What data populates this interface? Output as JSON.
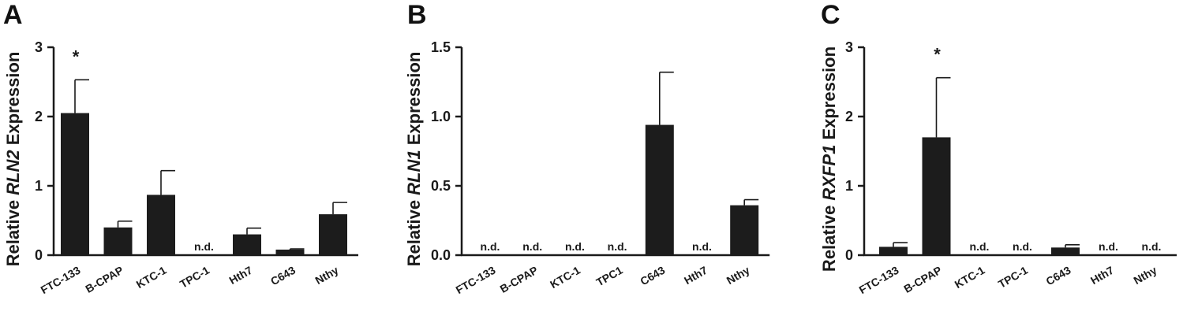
{
  "chart_data": [
    {
      "type": "bar",
      "panel_letter": "A",
      "ylabel_prefix": "Relative ",
      "ylabel_gene": "RLN2",
      "ylabel_suffix": " Expression",
      "categories": [
        "FTC-133",
        "B-CPAP",
        "KTC-1",
        "TPC-1",
        "Hth7",
        "C643",
        "Nthy"
      ],
      "values": [
        2.05,
        0.4,
        0.87,
        null,
        0.3,
        0.08,
        0.59
      ],
      "errors": [
        0.48,
        0.09,
        0.35,
        null,
        0.09,
        0.01,
        0.17
      ],
      "annotations": [
        "*",
        "",
        "",
        "n.d.",
        "",
        "",
        ""
      ],
      "ylim": [
        0,
        3
      ],
      "yticks": [
        0,
        1,
        2,
        3
      ],
      "ytick_labels": [
        "0",
        "1",
        "2",
        "3"
      ],
      "bar_color": "#1c1c1c"
    },
    {
      "type": "bar",
      "panel_letter": "B",
      "ylabel_prefix": "Relative ",
      "ylabel_gene": "RLN1",
      "ylabel_suffix": " Expression",
      "categories": [
        "FTC-133",
        "B-CPAP",
        "KTC-1",
        "TPC1",
        "C643",
        "Hth7",
        "Nthy"
      ],
      "values": [
        null,
        null,
        null,
        null,
        0.94,
        null,
        0.36
      ],
      "errors": [
        null,
        null,
        null,
        null,
        0.38,
        null,
        0.04
      ],
      "annotations": [
        "n.d.",
        "n.d.",
        "n.d.",
        "n.d.",
        "",
        "n.d.",
        ""
      ],
      "ylim": [
        0,
        1.5
      ],
      "yticks": [
        0,
        0.5,
        1.0,
        1.5
      ],
      "ytick_labels": [
        "0.0",
        "0.5",
        "1.0",
        "1.5"
      ],
      "bar_color": "#1c1c1c"
    },
    {
      "type": "bar",
      "panel_letter": "C",
      "ylabel_prefix": "Relative ",
      "ylabel_gene": "RXFP1",
      "ylabel_suffix": " Expression",
      "categories": [
        "FTC-133",
        "B-CPAP",
        "KTC-1",
        "TPC-1",
        "C643",
        "Hth7",
        "Nthy"
      ],
      "values": [
        0.12,
        1.7,
        null,
        null,
        0.11,
        null,
        null
      ],
      "errors": [
        0.06,
        0.86,
        null,
        null,
        0.04,
        null,
        null
      ],
      "annotations": [
        "",
        "*",
        "n.d.",
        "n.d.",
        "",
        "n.d.",
        "n.d."
      ],
      "ylim": [
        0,
        3
      ],
      "yticks": [
        0,
        1,
        2,
        3
      ],
      "ytick_labels": [
        "0",
        "1",
        "2",
        "3"
      ],
      "bar_color": "#1c1c1c"
    }
  ]
}
